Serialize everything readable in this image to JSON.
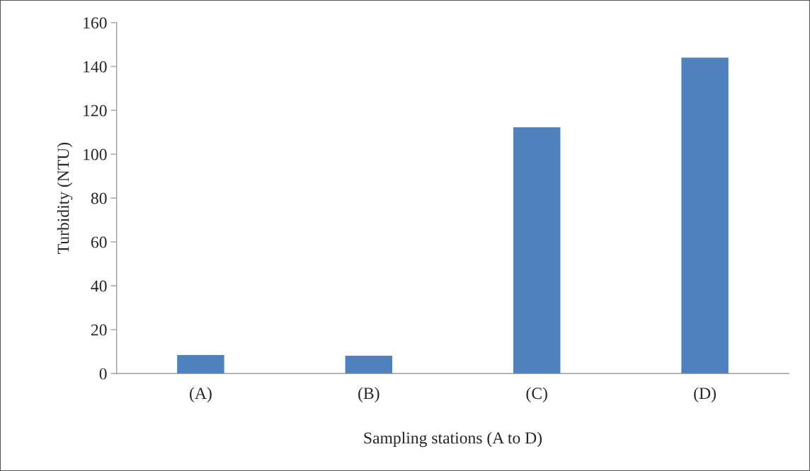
{
  "chart_data": {
    "type": "bar",
    "xlabel": "Sampling stations (A to D)",
    "ylabel": "Turbidity (NTU)",
    "categories": [
      "(A)",
      "(B)",
      "(C)",
      "(D)"
    ],
    "values": [
      8.4,
      8.1,
      112.3,
      144
    ],
    "color": "#4f81bd",
    "ylim": [
      0,
      160
    ],
    "yticks": [
      0,
      20,
      40,
      60,
      80,
      100,
      120,
      140,
      160
    ],
    "grid": false
  }
}
